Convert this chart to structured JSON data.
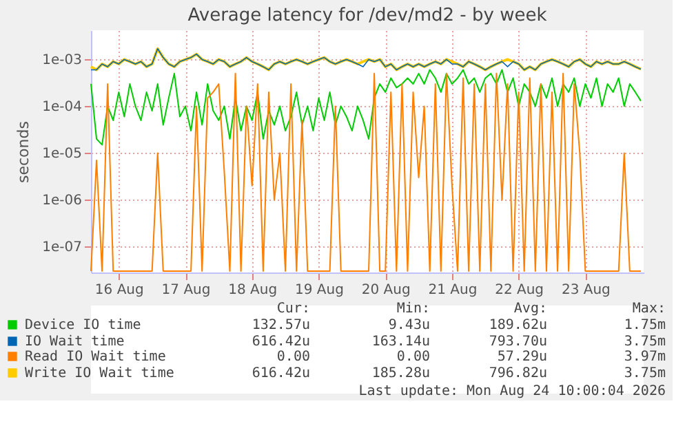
{
  "chart_data": {
    "type": "line",
    "title": "Average latency for /dev/md2 - by week",
    "ylabel": "seconds",
    "x": [
      "2026-08-16T02:00",
      "2026-08-16T04:00",
      "2026-08-16T06:00",
      "2026-08-16T08:00",
      "2026-08-16T10:00",
      "2026-08-16T12:00",
      "2026-08-16T14:00",
      "2026-08-16T16:00",
      "2026-08-16T18:00",
      "2026-08-16T20:00",
      "2026-08-16T22:00",
      "2026-08-17T00:00",
      "2026-08-17T02:00",
      "2026-08-17T04:00",
      "2026-08-17T06:00",
      "2026-08-17T08:00",
      "2026-08-17T10:00",
      "2026-08-17T12:00",
      "2026-08-17T14:00",
      "2026-08-17T16:00",
      "2026-08-17T18:00",
      "2026-08-17T20:00",
      "2026-08-17T22:00",
      "2026-08-18T00:00",
      "2026-08-18T02:00",
      "2026-08-18T04:00",
      "2026-08-18T06:00",
      "2026-08-18T08:00",
      "2026-08-18T10:00",
      "2026-08-18T12:00",
      "2026-08-18T14:00",
      "2026-08-18T16:00",
      "2026-08-18T18:00",
      "2026-08-18T20:00",
      "2026-08-18T22:00",
      "2026-08-19T00:00",
      "2026-08-19T02:00",
      "2026-08-19T04:00",
      "2026-08-19T06:00",
      "2026-08-19T08:00",
      "2026-08-19T10:00",
      "2026-08-19T12:00",
      "2026-08-19T14:00",
      "2026-08-19T16:00",
      "2026-08-19T18:00",
      "2026-08-19T20:00",
      "2026-08-19T22:00",
      "2026-08-20T00:00",
      "2026-08-20T02:00",
      "2026-08-20T04:00",
      "2026-08-20T06:00",
      "2026-08-20T08:00",
      "2026-08-20T10:00",
      "2026-08-20T12:00",
      "2026-08-20T14:00",
      "2026-08-20T16:00",
      "2026-08-20T18:00",
      "2026-08-20T20:00",
      "2026-08-20T22:00",
      "2026-08-21T00:00",
      "2026-08-21T02:00",
      "2026-08-21T04:00",
      "2026-08-21T06:00",
      "2026-08-21T08:00",
      "2026-08-21T10:00",
      "2026-08-21T12:00",
      "2026-08-21T14:00",
      "2026-08-21T16:00",
      "2026-08-21T18:00",
      "2026-08-21T20:00",
      "2026-08-21T22:00",
      "2026-08-22T00:00",
      "2026-08-22T02:00",
      "2026-08-22T04:00",
      "2026-08-22T06:00",
      "2026-08-22T08:00",
      "2026-08-22T10:00",
      "2026-08-22T12:00",
      "2026-08-22T14:00",
      "2026-08-22T16:00",
      "2026-08-22T18:00",
      "2026-08-22T20:00",
      "2026-08-22T22:00",
      "2026-08-23T00:00",
      "2026-08-23T02:00",
      "2026-08-23T04:00",
      "2026-08-23T06:00",
      "2026-08-23T08:00",
      "2026-08-23T10:00",
      "2026-08-23T12:00",
      "2026-08-23T14:00",
      "2026-08-23T16:00",
      "2026-08-23T18:00",
      "2026-08-23T20:00",
      "2026-08-23T22:00",
      "2026-08-24T00:00",
      "2026-08-24T02:00",
      "2026-08-24T04:00",
      "2026-08-24T06:00",
      "2026-08-24T08:00"
    ],
    "series": [
      {
        "name": "Device IO time",
        "color": "#00cc00",
        "values": [
          0.0003,
          2e-05,
          1.5e-05,
          0.0001,
          5e-05,
          0.0002,
          6e-05,
          0.0003,
          0.0001,
          5e-05,
          0.0002,
          8e-05,
          0.0003,
          4e-05,
          0.00015,
          0.0005,
          6e-05,
          0.0001,
          3e-05,
          0.0002,
          4e-05,
          0.0003,
          8e-05,
          5e-05,
          0.0001,
          2e-05,
          0.00015,
          3e-05,
          0.0001,
          5e-05,
          0.0002,
          2e-05,
          8e-05,
          4e-05,
          0.0001,
          3e-05,
          6e-05,
          0.0002,
          4e-05,
          0.0001,
          3e-05,
          0.00015,
          5e-05,
          0.0002,
          4e-05,
          0.0001,
          6e-05,
          3e-05,
          0.0001,
          5e-05,
          2e-05,
          0.00015,
          0.0003,
          0.0002,
          0.0004,
          0.00025,
          0.0003,
          0.0004,
          0.0003,
          0.0005,
          0.0003,
          0.0006,
          0.0004,
          0.0002,
          0.0005,
          0.0003,
          0.0004,
          0.0006,
          0.0003,
          0.0004,
          0.0002,
          0.0004,
          0.0005,
          0.0003,
          0.0006,
          0.0002,
          0.0004,
          0.0001,
          0.0003,
          0.0002,
          0.0001,
          0.0003,
          0.00015,
          0.0004,
          0.0001,
          0.0003,
          0.0002,
          0.0004,
          0.0001,
          0.0003,
          0.00015,
          0.0004,
          0.0001,
          0.0003,
          0.0002,
          0.0004,
          0.0001,
          0.0003,
          0.0002,
          0.00013
        ]
      },
      {
        "name": "IO Wait time",
        "color": "#0066b3",
        "values": [
          0.0006,
          0.0006,
          0.0008,
          0.0007,
          0.0009,
          0.0008,
          0.001,
          0.0009,
          0.0008,
          0.0009,
          0.0007,
          0.0008,
          0.0017,
          0.0011,
          0.0008,
          0.0007,
          0.0009,
          0.001,
          0.0011,
          0.0013,
          0.001,
          0.0009,
          0.0008,
          0.001,
          0.0009,
          0.0007,
          0.0008,
          0.0009,
          0.0011,
          0.0009,
          0.0008,
          0.0007,
          0.0006,
          0.0008,
          0.0009,
          0.0008,
          0.0009,
          0.001,
          0.0009,
          0.0008,
          0.0009,
          0.001,
          0.0011,
          0.0009,
          0.0008,
          0.0009,
          0.001,
          0.0009,
          0.0008,
          0.0007,
          0.001,
          0.0009,
          0.001,
          0.0007,
          0.0008,
          0.0006,
          0.0007,
          0.0008,
          0.0007,
          0.0008,
          0.0007,
          0.0008,
          0.0009,
          0.0008,
          0.001,
          0.0008,
          0.0008,
          0.0007,
          0.0009,
          0.0008,
          0.0007,
          0.0006,
          0.0007,
          0.0008,
          0.0009,
          0.0007,
          0.0009,
          0.0008,
          0.0006,
          0.0007,
          0.0006,
          0.0008,
          0.0009,
          0.001,
          0.0009,
          0.0008,
          0.0007,
          0.0009,
          0.001,
          0.0008,
          0.0007,
          0.0009,
          0.0008,
          0.0009,
          0.0008,
          0.0008,
          0.0009,
          0.0008,
          0.0007,
          0.00062
        ]
      },
      {
        "name": "Read IO Wait time",
        "color": "#ff7f00",
        "values": [
          3e-08,
          7e-06,
          3e-08,
          0.0003,
          3e-08,
          3e-08,
          3e-08,
          3e-08,
          3e-08,
          3e-08,
          3e-08,
          3e-08,
          1e-05,
          3e-08,
          3e-08,
          3e-08,
          3e-08,
          3e-08,
          3e-08,
          0.0001,
          3e-08,
          0.00015,
          0.0002,
          0.0003,
          4e-06,
          3e-08,
          0.0005,
          3e-08,
          0.0001,
          2e-06,
          0.0003,
          3e-08,
          0.0002,
          1e-06,
          1e-05,
          3e-08,
          0.0003,
          3e-08,
          5e-05,
          3e-08,
          3e-08,
          3e-08,
          3e-08,
          3e-08,
          0.0001,
          3e-08,
          3e-08,
          3e-08,
          3e-08,
          3e-08,
          3e-08,
          0.0005,
          3e-08,
          3e-08,
          0.0002,
          3e-08,
          0.0003,
          3e-08,
          0.0002,
          3e-06,
          0.0001,
          3e-08,
          0.0003,
          3e-08,
          0.0005,
          2e-06,
          3e-08,
          0.0004,
          3e-08,
          0.0003,
          3e-08,
          0.0003,
          3e-08,
          0.0005,
          1e-06,
          0.0003,
          3e-08,
          0.0002,
          3e-08,
          0.0004,
          3e-08,
          0.0003,
          3e-08,
          0.0002,
          3e-08,
          0.0005,
          3e-08,
          0.0003,
          1e-05,
          3e-08,
          3e-08,
          3e-08,
          3e-08,
          3e-08,
          3e-08,
          3e-08,
          1e-05,
          3e-08,
          3e-08,
          3e-08
        ]
      },
      {
        "name": "Write IO Wait time",
        "color": "#ffcc00",
        "values": [
          0.0007,
          0.0006,
          0.0008,
          0.0007,
          0.0009,
          0.0008,
          0.001,
          0.0009,
          0.0008,
          0.0009,
          0.0007,
          0.0008,
          0.0017,
          0.0011,
          0.0008,
          0.0007,
          0.0009,
          0.001,
          0.0011,
          0.0013,
          0.001,
          0.0009,
          0.0008,
          0.001,
          0.0009,
          0.0007,
          0.0008,
          0.0009,
          0.0011,
          0.0009,
          0.0008,
          0.0007,
          0.0006,
          0.0008,
          0.0009,
          0.0008,
          0.0009,
          0.001,
          0.0009,
          0.0008,
          0.0009,
          0.001,
          0.0011,
          0.0009,
          0.0008,
          0.0009,
          0.001,
          0.0009,
          0.0008,
          0.0009,
          0.001,
          0.0009,
          0.001,
          0.0007,
          0.0008,
          0.0006,
          0.0007,
          0.0008,
          0.0007,
          0.0008,
          0.0007,
          0.0008,
          0.0009,
          0.0008,
          0.001,
          0.0009,
          0.0008,
          0.0007,
          0.0009,
          0.0008,
          0.0007,
          0.0006,
          0.0007,
          0.0008,
          0.0009,
          0.001,
          0.0009,
          0.0008,
          0.0006,
          0.0007,
          0.0006,
          0.0008,
          0.0009,
          0.001,
          0.0009,
          0.0008,
          0.0007,
          0.0009,
          0.001,
          0.0008,
          0.0007,
          0.0009,
          0.0008,
          0.0009,
          0.0008,
          0.0008,
          0.0009,
          0.0008,
          0.0007,
          0.00062
        ]
      }
    ],
    "log": true,
    "ylim": [
      2.8e-08,
      0.0042
    ],
    "yticks": [
      {
        "value": 1e-07,
        "label": "1e-07"
      },
      {
        "value": 1e-06,
        "label": "1e-06"
      },
      {
        "value": 1e-05,
        "label": "1e-05"
      },
      {
        "value": 0.0001,
        "label": "1e-04"
      },
      {
        "value": 0.001,
        "label": "1e-03"
      }
    ],
    "xlim": [
      "2026-08-16T02:00",
      "2026-08-24T09:00"
    ],
    "xticks": [
      {
        "value": "2026-08-16T12:00",
        "label": "16 Aug"
      },
      {
        "value": "2026-08-17T12:00",
        "label": "17 Aug"
      },
      {
        "value": "2026-08-18T12:00",
        "label": "18 Aug"
      },
      {
        "value": "2026-08-19T12:00",
        "label": "19 Aug"
      },
      {
        "value": "2026-08-20T12:00",
        "label": "20 Aug"
      },
      {
        "value": "2026-08-21T12:00",
        "label": "21 Aug"
      },
      {
        "value": "2026-08-22T12:00",
        "label": "22 Aug"
      },
      {
        "value": "2026-08-23T12:00",
        "label": "23 Aug"
      }
    ],
    "grid": true,
    "legend": "bottom",
    "marker": "none",
    "line_style": "solid",
    "annotations": [
      "Cur:",
      "Min:",
      "Avg:",
      "Max:",
      "132.57u",
      "9.43u",
      "189.62u",
      "1.75m",
      "616.42u",
      "163.14u",
      "793.70u",
      "3.75m",
      "0.00",
      "0.00",
      "57.29u",
      "3.97m",
      "616.42u",
      "185.28u",
      "796.82u",
      "3.75m",
      "Last update: Mon Aug 24 10:00:04 2026"
    ]
  }
}
